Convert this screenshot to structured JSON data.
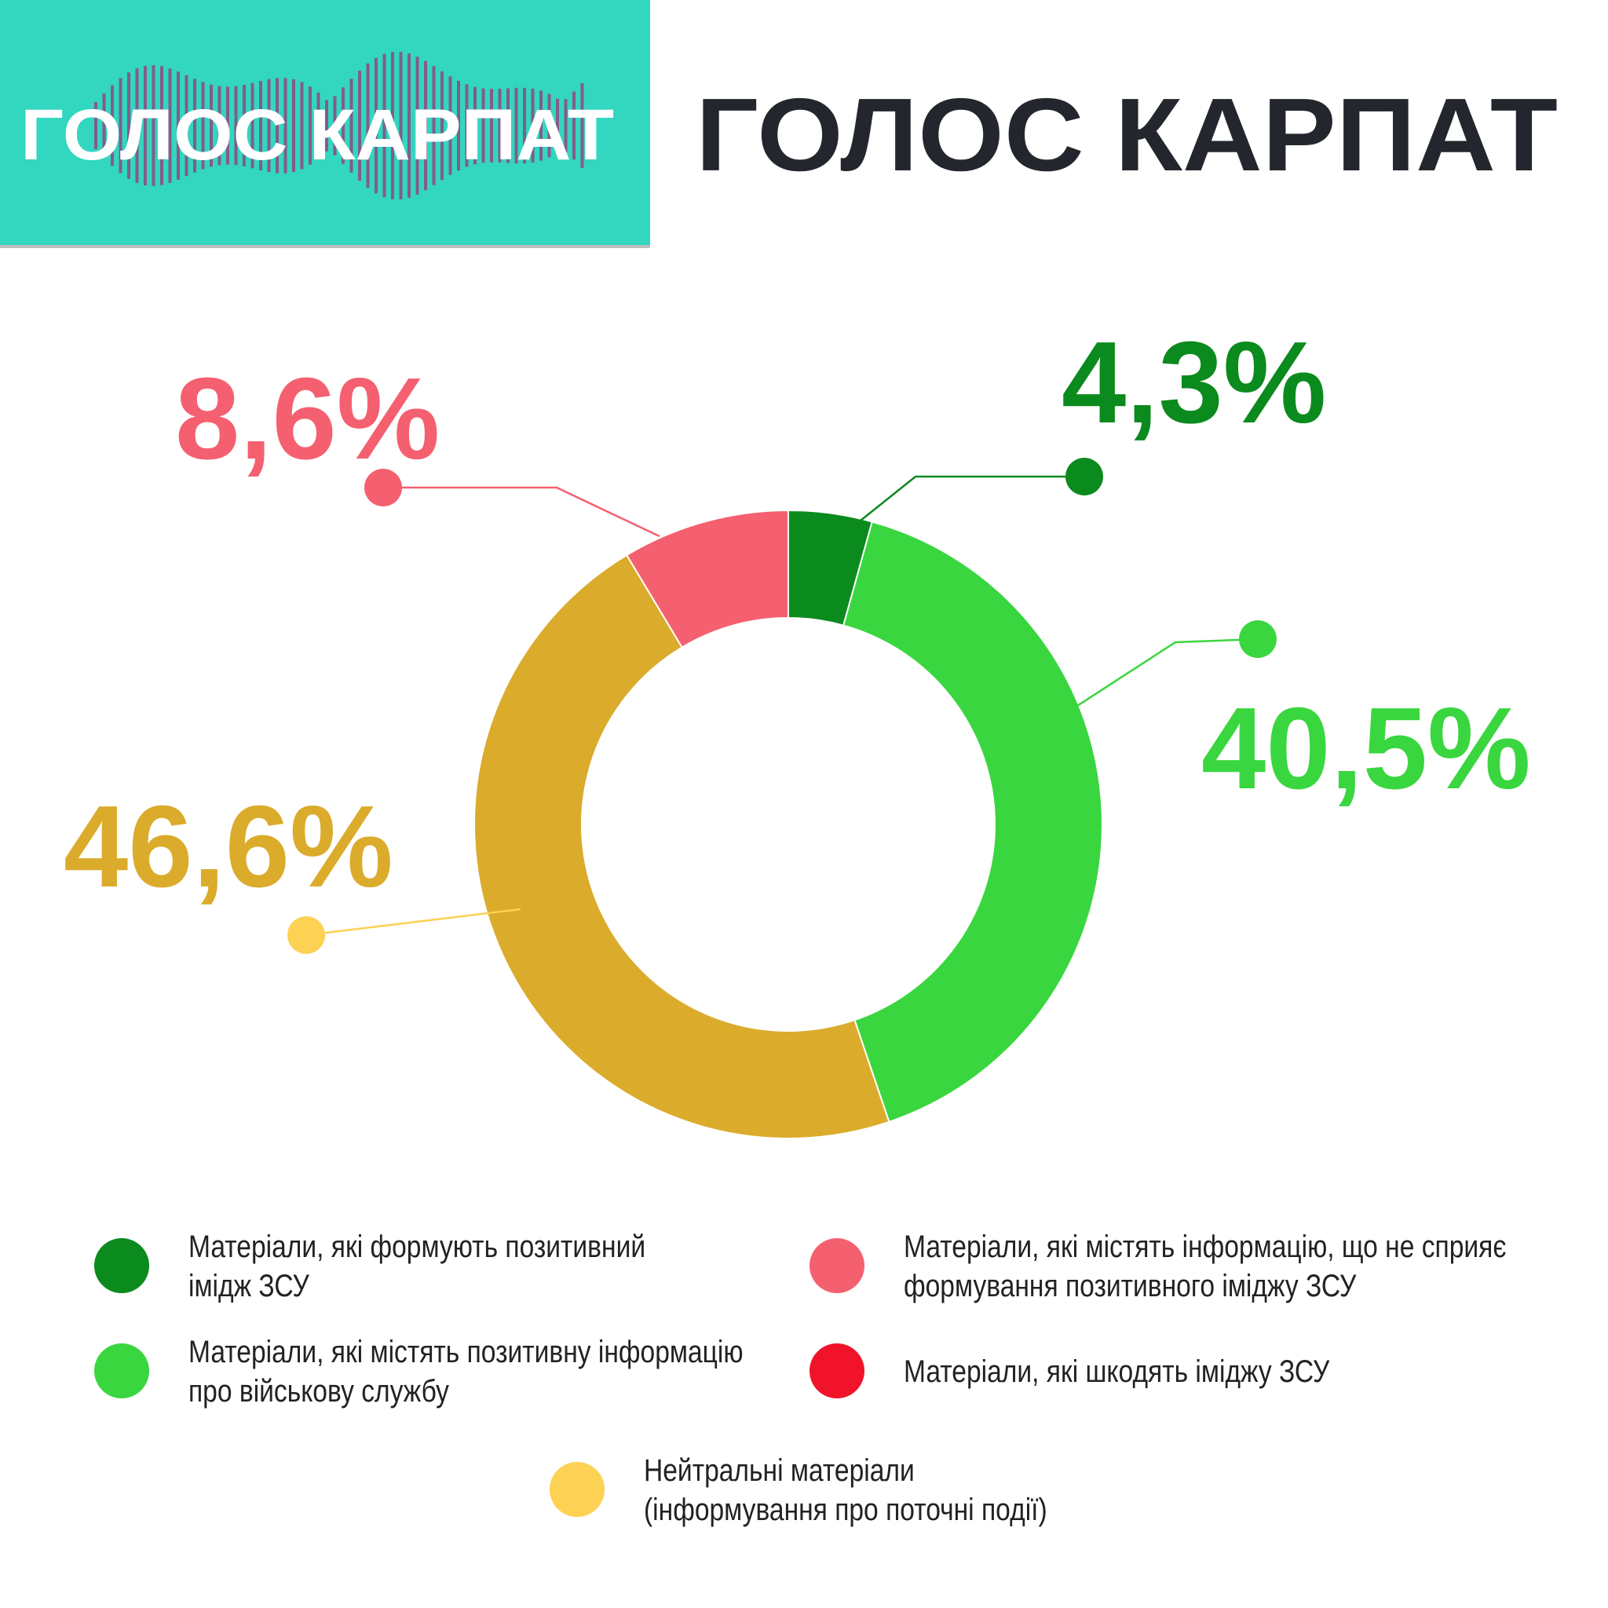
{
  "header": {
    "logo_text": "ГОЛОС КАРПАТ",
    "title": "ГОЛОС КАРПАТ"
  },
  "chart_data": {
    "type": "pie",
    "donut": true,
    "values": [
      4.3,
      40.5,
      0,
      46.6,
      8.6
    ],
    "value_labels": [
      "4,3%",
      "40,5%",
      null,
      "46,6%",
      "8,6%"
    ],
    "colors": [
      "#0b8a1d",
      "#3ad63f",
      "#f0132a",
      "#dbab2b",
      "#f4606f"
    ],
    "legend_colors": [
      "#0b8a1d",
      "#3ad63f",
      "#f0132a",
      "#fdd153",
      "#f4606f"
    ],
    "legend": [
      [
        "Матеріали, які формують позитивний",
        "імідж ЗСУ"
      ],
      [
        "Матеріали, які містять позитивну інформацію",
        "про військову службу"
      ],
      [
        "Матеріали, які шкодять іміджу ЗСУ"
      ],
      [
        "Нейтральні матеріали",
        "(інформування про поточні події)"
      ],
      [
        "Матеріали, які містять інформацію, що не сприяє",
        "формування позитивного іміджу ЗСУ"
      ]
    ]
  }
}
